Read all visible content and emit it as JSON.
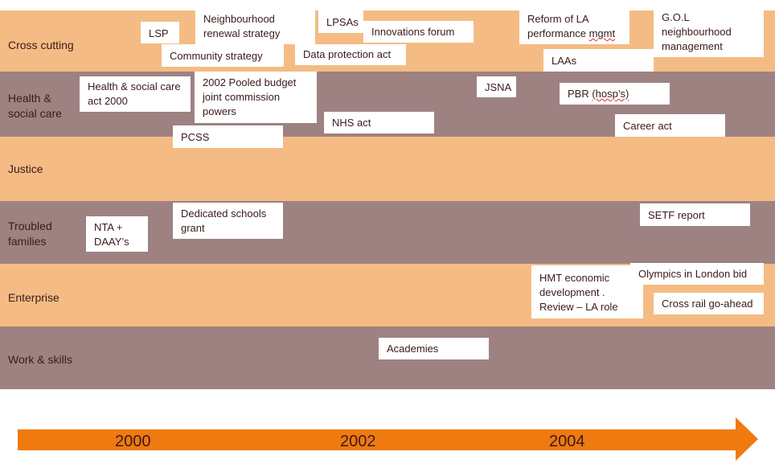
{
  "colors": {
    "band_light": "#f4bc84",
    "band_dark": "#9e8282",
    "arrow": "#ee7a10"
  },
  "rows": [
    "Cross cutting",
    "Health & social care",
    "Justice",
    "Troubled families",
    "Enterprise",
    "Work & skills"
  ],
  "events": {
    "lsp": "LSP",
    "nrs": "Neighbourhood renewal strategy",
    "lpsas": "LPSAs",
    "innov": "Innovations forum",
    "community": "Community strategy",
    "dpa": "Data protection act",
    "reform_a": "Reform of LA performance ",
    "reform_b": "mgmt",
    "gol": "G.O.L neighbourhood management",
    "laas": "LAAs",
    "hsc": "Health & social care act 2000",
    "pooled": "2002 Pooled budget joint commission powers",
    "nhs": "NHS act",
    "jsna": "JSNA",
    "pbr_a": "PBR ",
    "pbr_b": "(hosp’s)",
    "career": "Career act",
    "pcss": "PCSS",
    "nta": "NTA + DAAY’s",
    "dsg": "Dedicated schools grant",
    "setf": "SETF report",
    "hmt": "HMT economic development . Review – LA role",
    "olympics": "Olympics in London bid",
    "crossrail": "Cross rail go-ahead",
    "academies": "Academies"
  },
  "timeline": {
    "years": [
      "2000",
      "2002",
      "2004"
    ]
  }
}
